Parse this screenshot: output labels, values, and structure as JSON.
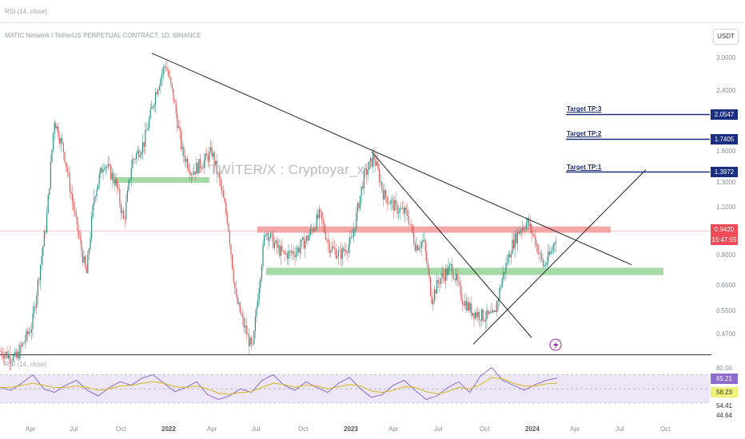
{
  "header": {
    "indicator_title": "RSI (14, close)",
    "symbol_title": "MATIC Network / TetherUS PERPETUAL CONTRACT, 1D, BINANCE",
    "currency_button": "USDT"
  },
  "watermark": "TWİTER/X : Cryptoyar_x",
  "targets": [
    {
      "label": "Target TP:3",
      "value": "2.0547",
      "price": 2.0547
    },
    {
      "label": "Target TP:2",
      "value": "1.7405",
      "price": 1.7405
    },
    {
      "label": "Target TP:1",
      "value": "1.3972",
      "price": 1.3972
    }
  ],
  "current_price": {
    "value": "0.9420",
    "countdown": "15:47:55",
    "price": 0.942
  },
  "rsi_panel": {
    "title": "RSI (14, close)",
    "levels": [
      "80.00",
      "54.41",
      "44.64"
    ],
    "rsi_value": "65.21",
    "ma_value": "58.23"
  },
  "chart_data": {
    "type": "candlestick",
    "x_ticks": [
      "Apr",
      "Jul",
      "Oct",
      "2022",
      "Apr",
      "Jul",
      "Oct",
      "2023",
      "Apr",
      "Jul",
      "Oct",
      "2024",
      "Apr",
      "Jul",
      "Oct"
    ],
    "y_ticks": [
      "3.0000",
      "2.4000",
      "1.6000",
      "1.3000",
      "1.1000",
      "0.8000",
      "0.6500",
      "0.5500",
      "0.4700"
    ],
    "y_scale": "log",
    "y_range": [
      0.42,
      3.3
    ],
    "resistance_zone": [
      0.93,
      0.97
    ],
    "support_zones": [
      [
        0.7,
        0.735
      ],
      [
        1.3,
        1.35
      ]
    ],
    "price_path": [
      [
        0,
        0.42
      ],
      [
        20,
        0.4
      ],
      [
        40,
        0.5
      ],
      [
        58,
        1.0
      ],
      [
        68,
        2.0
      ],
      [
        80,
        1.6
      ],
      [
        95,
        1.0
      ],
      [
        108,
        0.7
      ],
      [
        118,
        1.2
      ],
      [
        130,
        1.5
      ],
      [
        145,
        1.3
      ],
      [
        155,
        1.0
      ],
      [
        165,
        1.5
      ],
      [
        180,
        1.7
      ],
      [
        195,
        2.4
      ],
      [
        207,
        2.9
      ],
      [
        217,
        2.3
      ],
      [
        228,
        1.6
      ],
      [
        240,
        1.4
      ],
      [
        255,
        1.5
      ],
      [
        265,
        1.6
      ],
      [
        275,
        1.3
      ],
      [
        285,
        1.0
      ],
      [
        295,
        0.6
      ],
      [
        305,
        0.5
      ],
      [
        316,
        0.42
      ],
      [
        322,
        0.6
      ],
      [
        332,
        0.95
      ],
      [
        345,
        0.85
      ],
      [
        355,
        0.8
      ],
      [
        370,
        0.82
      ],
      [
        385,
        0.9
      ],
      [
        400,
        1.05
      ],
      [
        412,
        0.85
      ],
      [
        425,
        0.8
      ],
      [
        440,
        0.88
      ],
      [
        455,
        1.35
      ],
      [
        468,
        1.55
      ],
      [
        480,
        1.2
      ],
      [
        495,
        1.1
      ],
      [
        510,
        1.05
      ],
      [
        520,
        0.85
      ],
      [
        530,
        0.88
      ],
      [
        540,
        0.6
      ],
      [
        550,
        0.68
      ],
      [
        565,
        0.74
      ],
      [
        578,
        0.6
      ],
      [
        590,
        0.55
      ],
      [
        605,
        0.53
      ],
      [
        618,
        0.53
      ],
      [
        628,
        0.68
      ],
      [
        640,
        0.85
      ],
      [
        650,
        0.95
      ],
      [
        660,
        1.0
      ],
      [
        670,
        0.88
      ],
      [
        680,
        0.74
      ],
      [
        690,
        0.82
      ],
      [
        697,
        0.94
      ]
    ],
    "trend_lines": [
      {
        "from": [
          190,
          3.1
        ],
        "to": [
          790,
          0.75
        ]
      },
      {
        "from": [
          465,
          1.6
        ],
        "to": [
          665,
          0.46
        ]
      },
      {
        "from": [
          592,
          0.44
        ],
        "to": [
          808,
          1.42
        ]
      }
    ],
    "rsi_series": [
      52,
      48,
      58,
      70,
      50,
      45,
      55,
      62,
      48,
      40,
      52,
      60,
      55,
      65,
      70,
      58,
      46,
      52,
      60,
      42,
      35,
      40,
      50,
      45,
      62,
      70,
      55,
      48,
      60,
      52,
      45,
      58,
      66,
      50,
      38,
      42,
      55,
      62,
      48,
      35,
      40,
      52,
      60,
      45,
      68,
      80,
      62,
      55,
      48,
      56,
      62,
      65
    ],
    "rsi_ma_series": [
      52,
      52,
      55,
      58,
      55,
      52,
      52,
      54,
      52,
      48,
      50,
      54,
      55,
      58,
      60,
      58,
      53,
      52,
      54,
      50,
      44,
      42,
      45,
      46,
      52,
      58,
      56,
      52,
      55,
      54,
      50,
      53,
      56,
      54,
      47,
      45,
      48,
      53,
      52,
      46,
      43,
      46,
      52,
      50,
      56,
      66,
      64,
      58,
      54,
      54,
      57,
      58
    ]
  },
  "colors": {
    "up": "#2b8f83",
    "down": "#e05c5c",
    "resistance": "#f28b8b",
    "support": "#8fcf8f",
    "rsi": "#8e6ccf",
    "rsi_ma": "#d4b820",
    "target_box": "#1b2f80",
    "price_box": "#ef4a55",
    "rsi_band": "#ede6f7"
  },
  "icons": {
    "flash_marker": "lightning-icon"
  }
}
